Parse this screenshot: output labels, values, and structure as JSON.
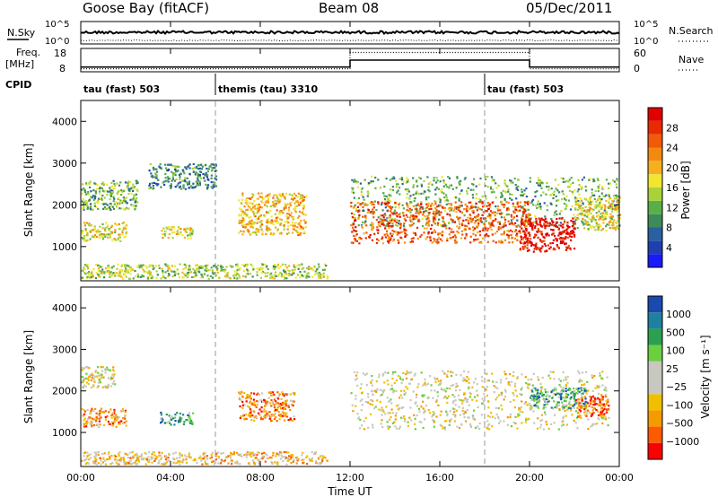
{
  "header": {
    "station": "Goose Bay (fitACF)",
    "beam": "Beam 08",
    "date": "05/Dec/2011"
  },
  "top_panels": {
    "nsky_label": "N.Sky",
    "nsearch_label": "N.Search",
    "noise_ticks": [
      "10^5",
      "10^0"
    ],
    "freq_label_1": "Freq.",
    "freq_label_2": "[MHz]",
    "freq_ticks": [
      "18",
      "8"
    ],
    "nave_label": "Nave",
    "nave_ticks": [
      "60",
      "0"
    ],
    "cpid_label": "CPID",
    "cpid_segments": [
      {
        "label": "tau (fast) 503",
        "start_hour": 0,
        "end_hour": 6
      },
      {
        "label": "themis (tau) 3310",
        "start_hour": 6,
        "end_hour": 18
      },
      {
        "label": "tau (fast) 503",
        "start_hour": 18,
        "end_hour": 24
      }
    ]
  },
  "ylabel": "Slant Range [km]",
  "xlabel": "Time UT",
  "x_ticks": [
    "00:00",
    "04:00",
    "08:00",
    "12:00",
    "16:00",
    "20:00",
    "00:00"
  ],
  "y_ticks": [
    "1000",
    "2000",
    "3000",
    "4000"
  ],
  "power_colorbar": {
    "label": "Power [dB]",
    "ticks": [
      "28",
      "24",
      "20",
      "16",
      "12",
      "8",
      "4"
    ],
    "colors": [
      "#1a1aff",
      "#1f3fb0",
      "#2a60a0",
      "#3c8c5a",
      "#5aaf4a",
      "#a8d23a",
      "#f2e632",
      "#f5b020",
      "#f28a10",
      "#f05a08",
      "#e82a00",
      "#e00000"
    ]
  },
  "velocity_colorbar": {
    "label": "Velocity [m s⁻¹]",
    "ticks": [
      "1000",
      "500",
      "100",
      "25",
      "−25",
      "−100",
      "−500",
      "−1000"
    ],
    "colors": [
      "#ff0000",
      "#ff5a00",
      "#f59a00",
      "#f0c000",
      "#c8c8c0",
      "#c8c8c0",
      "#6ad040",
      "#2aa050",
      "#2080a0",
      "#1a4ab0"
    ]
  },
  "chart_data": [
    {
      "type": "line",
      "title": "N.Sky / N.Search",
      "x": [
        0,
        24
      ],
      "ylim": [
        1,
        100000
      ],
      "log": true,
      "series": [
        {
          "name": "N.Sky"
        },
        {
          "name": "N.Search"
        }
      ]
    },
    {
      "type": "line",
      "title": "Freq. / Nave",
      "x": [
        0,
        12,
        12,
        20,
        20,
        24
      ],
      "series": [
        {
          "name": "Freq.",
          "values": [
            10,
            10,
            13,
            13,
            10,
            10
          ]
        },
        {
          "name": "Nave",
          "values": [
            10,
            10,
            52,
            52,
            10,
            10
          ]
        }
      ],
      "ylim_left": [
        8,
        18
      ],
      "ylim_right": [
        0,
        60
      ]
    },
    {
      "type": "heatmap",
      "xlabel": "Time UT",
      "ylabel": "Slant Range [km]",
      "xlim": [
        0,
        24
      ],
      "ylim": [
        180,
        4500
      ],
      "colorbar": "Power [dB]",
      "regions": [
        {
          "t0": 0.0,
          "t1": 11.0,
          "r0": 250,
          "r1": 600,
          "level": 5
        },
        {
          "t0": 0.0,
          "t1": 2.5,
          "r0": 1900,
          "r1": 2600,
          "level": 4
        },
        {
          "t0": 0.0,
          "t1": 2.0,
          "r0": 1150,
          "r1": 1600,
          "level": 6
        },
        {
          "t0": 3.5,
          "t1": 5.0,
          "r0": 1200,
          "r1": 1500,
          "level": 6
        },
        {
          "t0": 7.0,
          "t1": 10.0,
          "r0": 1300,
          "r1": 2300,
          "level": 7
        },
        {
          "t0": 3.0,
          "t1": 6.0,
          "r0": 2400,
          "r1": 3000,
          "level": 3
        },
        {
          "t0": 12.0,
          "t1": 24.0,
          "r0": 1500,
          "r1": 2700,
          "level": 4
        },
        {
          "t0": 12.0,
          "t1": 20.0,
          "r0": 1100,
          "r1": 2100,
          "level": 9
        },
        {
          "t0": 19.5,
          "t1": 22.0,
          "r0": 900,
          "r1": 1700,
          "level": 11
        },
        {
          "t0": 22.0,
          "t1": 24.0,
          "r0": 1400,
          "r1": 2200,
          "level": 6
        }
      ]
    },
    {
      "type": "heatmap",
      "xlabel": "Time UT",
      "ylabel": "Slant Range [km]",
      "xlim": [
        0,
        24
      ],
      "ylim": [
        180,
        4500
      ],
      "colorbar": "Velocity [m s⁻¹]",
      "regions": [
        {
          "t0": 0.0,
          "t1": 11.0,
          "r0": 250,
          "r1": 550,
          "level": 3
        },
        {
          "t0": 0.0,
          "t1": 1.5,
          "r0": 2100,
          "r1": 2600,
          "level": 4
        },
        {
          "t0": 0.0,
          "t1": 2.0,
          "r0": 1150,
          "r1": 1600,
          "level": 2
        },
        {
          "t0": 3.5,
          "t1": 5.0,
          "r0": 1200,
          "r1": 1500,
          "level": 7
        },
        {
          "t0": 7.0,
          "t1": 9.5,
          "r0": 1300,
          "r1": 2000,
          "level": 2
        },
        {
          "t0": 12.0,
          "t1": 23.5,
          "r0": 1100,
          "r1": 2500,
          "level": 4
        },
        {
          "t0": 20.0,
          "t1": 22.5,
          "r0": 1600,
          "r1": 2100,
          "level": 7
        },
        {
          "t0": 22.0,
          "t1": 23.5,
          "r0": 1400,
          "r1": 1900,
          "level": 1
        }
      ]
    }
  ]
}
